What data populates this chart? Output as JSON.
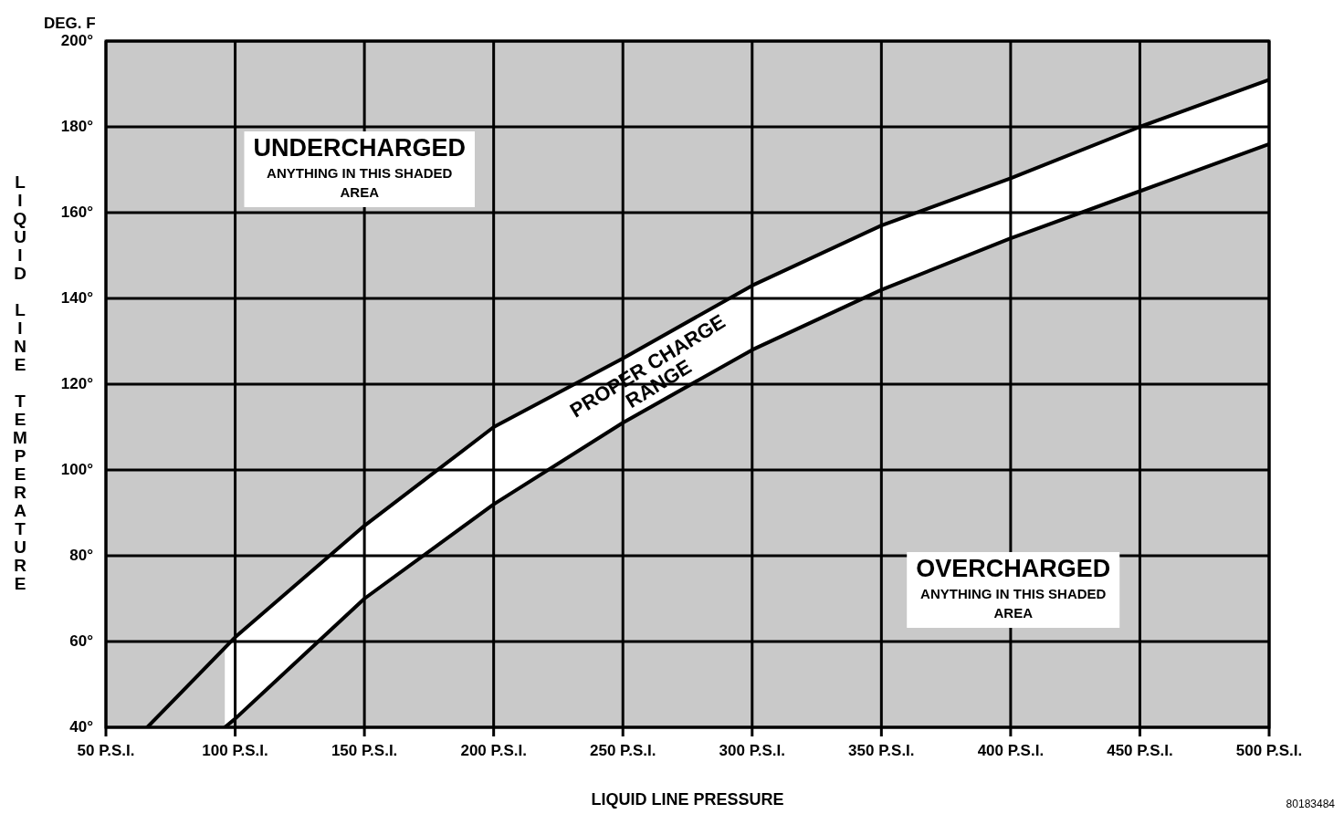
{
  "chart_data": {
    "type": "line",
    "xlabel": "LIQUID LINE PRESSURE",
    "ylabel": "LIQUID LINE TEMPERATURE",
    "xlim": [
      50,
      500
    ],
    "ylim": [
      40,
      200
    ],
    "xticks": [
      {
        "value": 50,
        "label": "50 P.S.I."
      },
      {
        "value": 100,
        "label": "100 P.S.I."
      },
      {
        "value": 150,
        "label": "150 P.S.I."
      },
      {
        "value": 200,
        "label": "200 P.S.I."
      },
      {
        "value": 250,
        "label": "250 P.S.I."
      },
      {
        "value": 300,
        "label": "300 P.S.I."
      },
      {
        "value": 350,
        "label": "350 P.S.I."
      },
      {
        "value": 400,
        "label": "400 P.S.I."
      },
      {
        "value": 450,
        "label": "450 P.S.I."
      },
      {
        "value": 500,
        "label": "500 P.S.I."
      }
    ],
    "yticks": [
      {
        "value": 40,
        "label": "40°"
      },
      {
        "value": 60,
        "label": "60°"
      },
      {
        "value": 80,
        "label": "80°"
      },
      {
        "value": 100,
        "label": "100°"
      },
      {
        "value": 120,
        "label": "120°"
      },
      {
        "value": 140,
        "label": "140°"
      },
      {
        "value": 160,
        "label": "160°"
      },
      {
        "value": 180,
        "label": "180°"
      },
      {
        "value": 200,
        "label": "200°"
      }
    ],
    "grid": true,
    "marker": "none",
    "line_style": "solid",
    "series": [
      {
        "color": "#000000",
        "x": [
          66,
          100,
          150,
          200,
          250,
          300,
          350,
          400,
          450,
          500
        ],
        "values": [
          40,
          61,
          87,
          110,
          126,
          143,
          157,
          168,
          180,
          191
        ]
      },
      {
        "color": "#000000",
        "x": [
          96,
          100,
          150,
          200,
          250,
          300,
          350,
          400,
          450,
          500
        ],
        "values": [
          40,
          42,
          70,
          92,
          111,
          128,
          142,
          154,
          165,
          176
        ]
      }
    ],
    "annotations": [
      "DEG. F",
      "UNDERCHARGED\nANYTHING IN THIS SHADED\nAREA",
      "OVERCHARGED\nANYTHING IN THIS SHADED\nAREA",
      "PROPER CHARGE\nRANGE",
      "80183484"
    ]
  }
}
